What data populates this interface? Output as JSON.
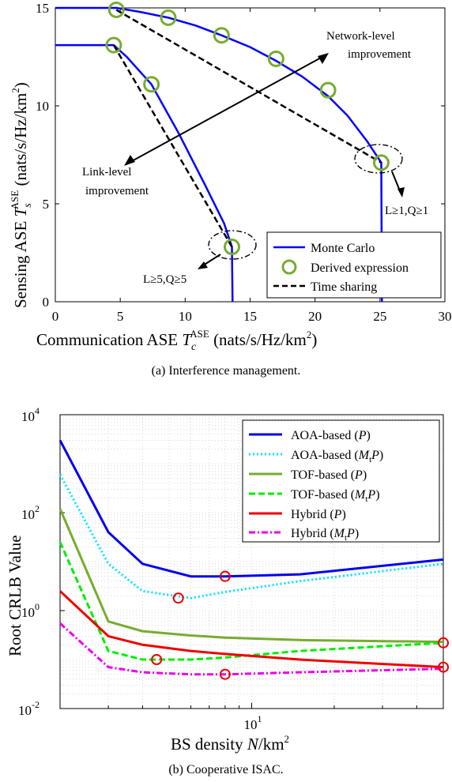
{
  "chart_data": [
    {
      "type": "line",
      "caption": "(a) Interference management.",
      "xlabel": {
        "pre": "Communication ASE ",
        "sym": "T",
        "sub": "c",
        "sup": "ASE",
        "post": " (nats/s/Hz/km",
        "post_sup": "2",
        "tail": ")"
      },
      "ylabel": {
        "pre": "Sensing ASE ",
        "sym": "T",
        "sub": "s",
        "sup": "ASE",
        "post": " (nats/s/Hz/km",
        "post_sup": "2",
        "tail": ")"
      },
      "xlim": [
        0,
        30
      ],
      "ylim": [
        0,
        15
      ],
      "xticks": [
        0,
        5,
        10,
        15,
        20,
        25,
        30
      ],
      "yticks": [
        0,
        5,
        10,
        15
      ],
      "grid": false,
      "legend": {
        "position": "bottom-right",
        "entries": [
          "Monte Carlo",
          "Derived expression",
          "Time sharing"
        ]
      },
      "series": [
        {
          "name": "Monte Carlo",
          "style": "solid",
          "color": "#0000ff",
          "points": [
            [
              0,
              15
            ],
            [
              4.7,
              15
            ],
            [
              6.5,
              14.8
            ],
            [
              8.7,
              14.5
            ],
            [
              10.8,
              14.1
            ],
            [
              12.8,
              13.6
            ],
            [
              15,
              13.0
            ],
            [
              17,
              12.3
            ],
            [
              19,
              11.5
            ],
            [
              21,
              10.5
            ],
            [
              22.5,
              9.5
            ],
            [
              24,
              8.2
            ],
            [
              25.1,
              7.1
            ],
            [
              25.15,
              0
            ]
          ]
        },
        {
          "name": "Monte Carlo",
          "style": "solid",
          "color": "#0000ff",
          "points": [
            [
              0,
              13.1
            ],
            [
              4.5,
              13.1
            ],
            [
              5.5,
              12.5
            ],
            [
              7.4,
              11.1
            ],
            [
              9.5,
              8.6
            ],
            [
              11.5,
              6.0
            ],
            [
              13,
              4.0
            ],
            [
              13.6,
              2.8
            ],
            [
              13.65,
              0
            ]
          ]
        },
        {
          "name": "Derived expression",
          "style": "marker",
          "color": "#77ac30",
          "points": [
            [
              4.7,
              14.9
            ],
            [
              8.7,
              14.5
            ],
            [
              12.8,
              13.6
            ],
            [
              17,
              12.4
            ],
            [
              21,
              10.8
            ],
            [
              25.1,
              7.1
            ],
            [
              4.5,
              13.1
            ],
            [
              7.4,
              11.1
            ],
            [
              13.6,
              2.8
            ]
          ]
        },
        {
          "name": "Time sharing",
          "style": "dashed",
          "color": "#000000",
          "points": [
            [
              4.7,
              14.9
            ],
            [
              25.1,
              7.1
            ]
          ]
        },
        {
          "name": "Time sharing",
          "style": "dashed",
          "color": "#000000",
          "points": [
            [
              4.5,
              13.1
            ],
            [
              13.6,
              2.8
            ]
          ]
        }
      ],
      "annotations": [
        {
          "line1": "Network-level",
          "line2": "improvement"
        },
        {
          "line1": "Link-level",
          "line2": "improvement"
        },
        {
          "text": "L≥1,Q≥1"
        },
        {
          "text": "L≥5,Q≥5"
        }
      ]
    },
    {
      "type": "line",
      "caption": "(b) Cooperative ISAC.",
      "xlabel": {
        "pre": "BS density ",
        "sym": "N",
        "post": "/km",
        "post_sup": "2"
      },
      "ylabel": "Root CRLB Value",
      "xscale": "log",
      "yscale": "log",
      "xlim": [
        2,
        50
      ],
      "ylim": [
        0.01,
        10000
      ],
      "xticks": [
        10
      ],
      "yticks": [
        0.01,
        1,
        100,
        10000
      ],
      "ytick_labels": [
        {
          "base": "10",
          "exp": "-2"
        },
        {
          "base": "10",
          "exp": "0"
        },
        {
          "base": "10",
          "exp": "2"
        },
        {
          "base": "10",
          "exp": "4"
        }
      ],
      "xtick_labels": [
        {
          "base": "10",
          "exp": "1"
        }
      ],
      "grid": true,
      "legend": {
        "position": "top-right"
      },
      "series": [
        {
          "name": "AOA-based (P)",
          "legend_label": {
            "pre": "AOA-based (",
            "sym": "P",
            "post": ")"
          },
          "style": "solid",
          "color": "#0000ee",
          "x": [
            2,
            3,
            4,
            6,
            8,
            15,
            50
          ],
          "y": [
            3000,
            40,
            9,
            5,
            5,
            5.5,
            11
          ]
        },
        {
          "name": "AOA-based (MtP)",
          "legend_label": {
            "pre": "AOA-based (",
            "sym": "M",
            "sub": "t",
            "sym2": "P",
            "post": ")"
          },
          "style": "dotted",
          "color": "#00e5ff",
          "x": [
            2,
            3,
            4,
            6,
            8,
            15,
            50
          ],
          "y": [
            600,
            9,
            2.5,
            1.8,
            2.4,
            4,
            9
          ]
        },
        {
          "name": "TOF-based (P)",
          "legend_label": {
            "pre": "TOF-based (",
            "sym": "P",
            "post": ")"
          },
          "style": "solid",
          "color": "#77ac30",
          "x": [
            2,
            3,
            4,
            6,
            8,
            15,
            50
          ],
          "y": [
            120,
            0.6,
            0.38,
            0.31,
            0.28,
            0.25,
            0.23
          ]
        },
        {
          "name": "TOF-based (MtP)",
          "legend_label": {
            "pre": "TOF-based (",
            "sym": "M",
            "sub": "t",
            "sym2": "P",
            "post": ")"
          },
          "style": "dashed",
          "color": "#00ee00",
          "x": [
            2,
            3,
            4,
            6,
            8,
            15,
            50
          ],
          "y": [
            25,
            0.15,
            0.1,
            0.1,
            0.11,
            0.15,
            0.22
          ]
        },
        {
          "name": "Hybrid (P)",
          "legend_label": {
            "pre": "Hybrid (",
            "sym": "P",
            "post": ")"
          },
          "style": "solid",
          "color": "#ee0000",
          "x": [
            2,
            3,
            4,
            6,
            8,
            15,
            50
          ],
          "y": [
            2.5,
            0.3,
            0.2,
            0.15,
            0.13,
            0.1,
            0.07
          ]
        },
        {
          "name": "Hybrid (MtP)",
          "legend_label": {
            "pre": "Hybrid (",
            "sym": "M",
            "sub": "t",
            "sym2": "P",
            "post": ")"
          },
          "style": "dashdot",
          "color": "#ee00ee",
          "x": [
            2,
            3,
            4,
            6,
            8,
            15,
            50
          ],
          "y": [
            0.55,
            0.07,
            0.055,
            0.05,
            0.05,
            0.055,
            0.065
          ]
        }
      ],
      "optimum_markers": {
        "color": "#ee0000",
        "points": [
          [
            5.4,
            1.8
          ],
          [
            8,
            5
          ],
          [
            4.5,
            0.1
          ],
          [
            8,
            0.05
          ],
          [
            50,
            0.22
          ],
          [
            50,
            0.07
          ]
        ]
      }
    }
  ]
}
